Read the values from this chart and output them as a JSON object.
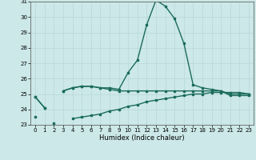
{
  "x": [
    0,
    1,
    2,
    3,
    4,
    5,
    6,
    7,
    8,
    9,
    10,
    11,
    12,
    13,
    14,
    15,
    16,
    17,
    18,
    19,
    20,
    21,
    22,
    23
  ],
  "line1": [
    24.8,
    24.1,
    null,
    25.2,
    25.4,
    25.5,
    25.5,
    25.4,
    25.4,
    25.3,
    26.4,
    27.2,
    29.5,
    31.1,
    30.7,
    29.9,
    28.3,
    25.6,
    25.4,
    25.3,
    25.2,
    24.9,
    24.9,
    24.9
  ],
  "line2": [
    24.8,
    24.1,
    null,
    25.2,
    25.4,
    25.5,
    25.5,
    25.4,
    25.3,
    25.2,
    25.2,
    25.2,
    25.2,
    25.2,
    25.2,
    25.2,
    25.2,
    25.2,
    25.2,
    25.2,
    25.2,
    25.0,
    25.0,
    25.0
  ],
  "line3": [
    23.5,
    null,
    23.1,
    null,
    23.4,
    23.5,
    23.6,
    23.7,
    23.9,
    24.0,
    24.2,
    24.3,
    24.5,
    24.6,
    24.7,
    24.8,
    24.9,
    25.0,
    25.0,
    25.1,
    25.1,
    25.1,
    25.1,
    25.0
  ],
  "background_color": "#cce8e8",
  "grid_color": "#b8d8d8",
  "line_color": "#1a6b5a",
  "ylim": [
    23,
    31
  ],
  "xlim": [
    -0.5,
    23.5
  ],
  "xlabel": "Humidex (Indice chaleur)",
  "yticks": [
    23,
    24,
    25,
    26,
    27,
    28,
    29,
    30,
    31
  ],
  "xticks": [
    0,
    1,
    2,
    3,
    4,
    5,
    6,
    7,
    8,
    9,
    10,
    11,
    12,
    13,
    14,
    15,
    16,
    17,
    18,
    19,
    20,
    21,
    22,
    23
  ],
  "xlabel_fontsize": 6,
  "tick_fontsize": 5,
  "linewidth": 1.0,
  "markersize": 1.8
}
